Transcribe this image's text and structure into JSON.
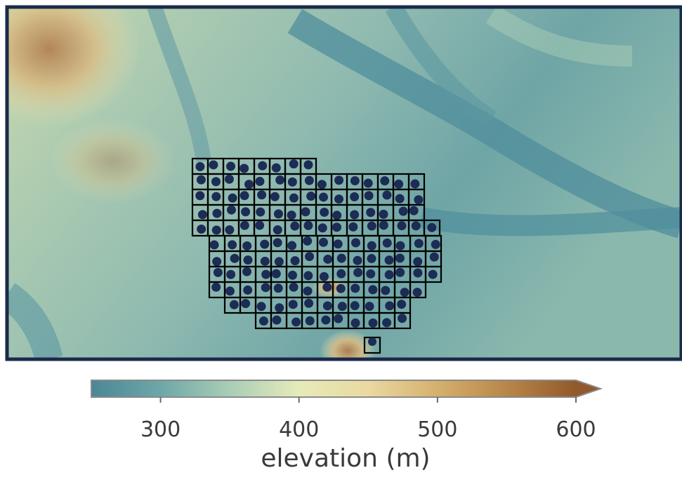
{
  "colorbar": {
    "label": "elevation (m)",
    "lim": [
      250,
      600
    ],
    "ticks": [
      300,
      400,
      500,
      600
    ],
    "extend": "max",
    "cmap": [
      "#4a8796",
      "#6fa7a8",
      "#a9cdb6",
      "#e6ebba",
      "#ead9a0",
      "#d5b06f",
      "#b8864a",
      "#93592a"
    ]
  }
}
